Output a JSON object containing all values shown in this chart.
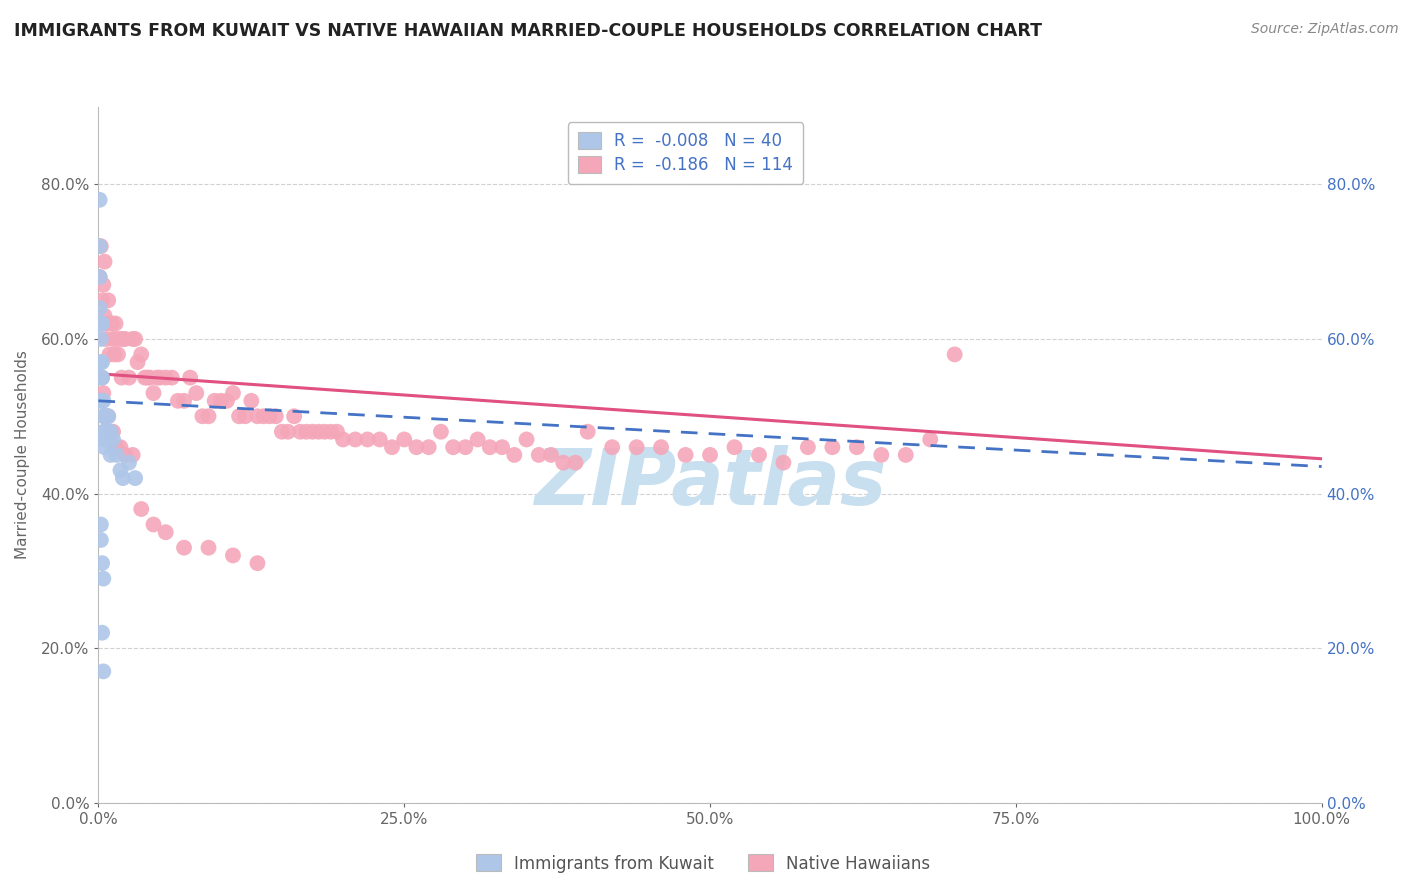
{
  "title": "IMMIGRANTS FROM KUWAIT VS NATIVE HAWAIIAN MARRIED-COUPLE HOUSEHOLDS CORRELATION CHART",
  "source": "Source: ZipAtlas.com",
  "ylabel": "Married-couple Households",
  "xlabel": "",
  "legend_bottom": [
    "Immigrants from Kuwait",
    "Native Hawaiians"
  ],
  "series": [
    {
      "label": "Immigrants from Kuwait",
      "R": -0.008,
      "N": 40,
      "color": "#aec6e8",
      "line_color": "#4472c4",
      "line_dash": true,
      "line_x": [
        0.0,
        1.0
      ],
      "line_y": [
        0.52,
        0.435
      ],
      "points_x": [
        0.001,
        0.001,
        0.001,
        0.001,
        0.002,
        0.002,
        0.002,
        0.002,
        0.002,
        0.003,
        0.003,
        0.003,
        0.003,
        0.004,
        0.004,
        0.004,
        0.005,
        0.005,
        0.005,
        0.005,
        0.006,
        0.006,
        0.007,
        0.007,
        0.008,
        0.008,
        0.01,
        0.01,
        0.012,
        0.015,
        0.018,
        0.02,
        0.025,
        0.03,
        0.002,
        0.002,
        0.003,
        0.004,
        0.003,
        0.004
      ],
      "points_y": [
        0.78,
        0.72,
        0.68,
        0.64,
        0.62,
        0.6,
        0.57,
        0.55,
        0.52,
        0.62,
        0.57,
        0.55,
        0.52,
        0.52,
        0.5,
        0.48,
        0.5,
        0.48,
        0.47,
        0.46,
        0.5,
        0.47,
        0.5,
        0.48,
        0.5,
        0.47,
        0.48,
        0.45,
        0.47,
        0.45,
        0.43,
        0.42,
        0.44,
        0.42,
        0.36,
        0.34,
        0.31,
        0.29,
        0.22,
        0.17
      ]
    },
    {
      "label": "Native Hawaiians",
      "R": -0.186,
      "N": 114,
      "color": "#f4a7b9",
      "line_color": "#e05080",
      "line_dash": false,
      "line_x": [
        0.0,
        1.0
      ],
      "line_y": [
        0.555,
        0.445
      ],
      "points_x": [
        0.001,
        0.002,
        0.003,
        0.004,
        0.005,
        0.005,
        0.006,
        0.007,
        0.008,
        0.009,
        0.01,
        0.011,
        0.012,
        0.013,
        0.014,
        0.015,
        0.016,
        0.018,
        0.019,
        0.02,
        0.022,
        0.025,
        0.028,
        0.03,
        0.032,
        0.035,
        0.038,
        0.04,
        0.042,
        0.045,
        0.048,
        0.05,
        0.055,
        0.06,
        0.065,
        0.07,
        0.075,
        0.08,
        0.085,
        0.09,
        0.095,
        0.1,
        0.105,
        0.11,
        0.115,
        0.12,
        0.125,
        0.13,
        0.135,
        0.14,
        0.145,
        0.15,
        0.155,
        0.16,
        0.165,
        0.17,
        0.175,
        0.18,
        0.185,
        0.19,
        0.195,
        0.2,
        0.21,
        0.22,
        0.23,
        0.24,
        0.25,
        0.26,
        0.27,
        0.28,
        0.29,
        0.3,
        0.31,
        0.32,
        0.33,
        0.34,
        0.35,
        0.36,
        0.37,
        0.38,
        0.39,
        0.4,
        0.42,
        0.44,
        0.46,
        0.48,
        0.5,
        0.52,
        0.54,
        0.56,
        0.58,
        0.6,
        0.62,
        0.64,
        0.66,
        0.68,
        0.7,
        0.003,
        0.004,
        0.006,
        0.008,
        0.01,
        0.012,
        0.015,
        0.018,
        0.022,
        0.028,
        0.035,
        0.045,
        0.055,
        0.07,
        0.09,
        0.11,
        0.13
      ],
      "points_y": [
        0.68,
        0.72,
        0.65,
        0.67,
        0.63,
        0.7,
        0.6,
        0.62,
        0.65,
        0.58,
        0.62,
        0.62,
        0.6,
        0.58,
        0.62,
        0.6,
        0.58,
        0.6,
        0.55,
        0.6,
        0.6,
        0.55,
        0.6,
        0.6,
        0.57,
        0.58,
        0.55,
        0.55,
        0.55,
        0.53,
        0.55,
        0.55,
        0.55,
        0.55,
        0.52,
        0.52,
        0.55,
        0.53,
        0.5,
        0.5,
        0.52,
        0.52,
        0.52,
        0.53,
        0.5,
        0.5,
        0.52,
        0.5,
        0.5,
        0.5,
        0.5,
        0.48,
        0.48,
        0.5,
        0.48,
        0.48,
        0.48,
        0.48,
        0.48,
        0.48,
        0.48,
        0.47,
        0.47,
        0.47,
        0.47,
        0.46,
        0.47,
        0.46,
        0.46,
        0.48,
        0.46,
        0.46,
        0.47,
        0.46,
        0.46,
        0.45,
        0.47,
        0.45,
        0.45,
        0.44,
        0.44,
        0.48,
        0.46,
        0.46,
        0.46,
        0.45,
        0.45,
        0.46,
        0.45,
        0.44,
        0.46,
        0.46,
        0.46,
        0.45,
        0.45,
        0.47,
        0.58,
        0.55,
        0.53,
        0.5,
        0.5,
        0.48,
        0.48,
        0.46,
        0.46,
        0.45,
        0.45,
        0.38,
        0.36,
        0.35,
        0.33,
        0.33,
        0.32,
        0.31
      ]
    }
  ],
  "xlim": [
    0.0,
    1.0
  ],
  "ylim": [
    0.0,
    0.9
  ],
  "yticks": [
    0.0,
    0.2,
    0.4,
    0.6,
    0.8
  ],
  "ytick_labels": [
    "0.0%",
    "20.0%",
    "40.0%",
    "60.0%",
    "80.0%"
  ],
  "xticks": [
    0.0,
    0.25,
    0.5,
    0.75,
    1.0
  ],
  "xtick_labels": [
    "0.0%",
    "25.0%",
    "50.0%",
    "75.0%",
    "100.0%"
  ],
  "background_color": "#ffffff",
  "plot_bg_color": "#ffffff",
  "grid_color": "#cccccc",
  "title_color": "#222222",
  "source_color": "#888888",
  "axis_color": "#bbbbbb",
  "tick_color": "#666666",
  "watermark_text": "ZIPatlas",
  "watermark_color": "#c8dff0",
  "legend_box_blue": "#aec6e8",
  "legend_box_pink": "#f4a7b9",
  "legend_text_color": "#4472c4"
}
